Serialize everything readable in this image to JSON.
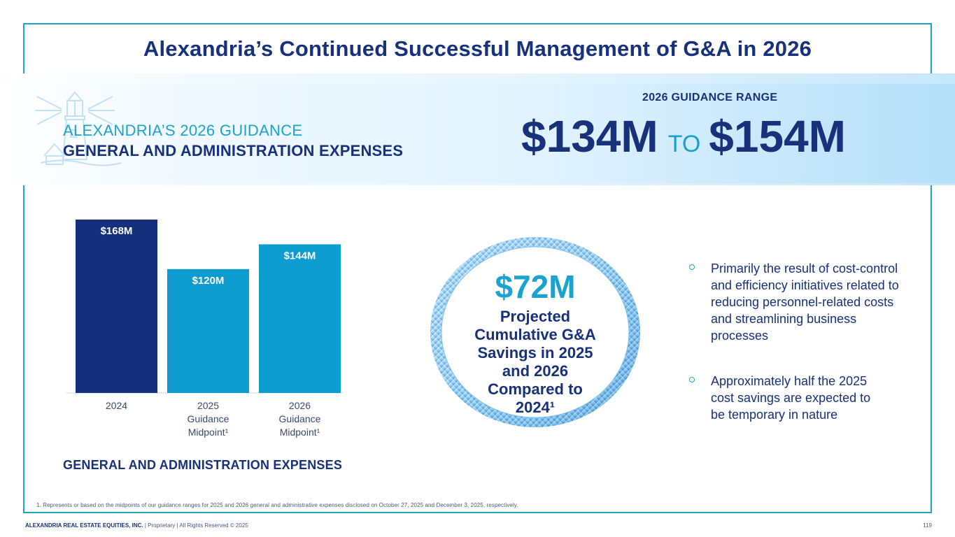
{
  "title": "Alexandria’s Continued Successful Management of G&A in 2026",
  "guidance": {
    "line1": "ALEXANDRIA’S 2026 GUIDANCE",
    "line2": "GENERAL AND ADMINISTRATION EXPENSES",
    "range_label": "2026 GUIDANCE RANGE",
    "low": "$134M",
    "to": "TO",
    "high": "$154M"
  },
  "chart_data": {
    "type": "bar",
    "title": "GENERAL AND ADMINISTRATION EXPENSES",
    "categories": [
      "2024",
      "2025 Guidance Midpoint¹",
      "2026 Guidance Midpoint¹"
    ],
    "category_lines": [
      [
        "2024"
      ],
      [
        "2025",
        "Guidance",
        "Midpoint¹"
      ],
      [
        "2026",
        "Guidance",
        "Midpoint¹"
      ]
    ],
    "values": [
      168,
      120,
      144
    ],
    "data_labels": [
      "$168M",
      "$120M",
      "$144M"
    ],
    "colors": [
      "#142f7c",
      "#0d9bd0",
      "#0d9bd0"
    ],
    "ylim": [
      0,
      168
    ],
    "xlabel": "",
    "ylabel": ""
  },
  "savings": {
    "amount": "$72M",
    "lines": [
      "Projected",
      "Cumulative G&A",
      "Savings in 2025",
      "and 2026",
      "Compared to",
      "2024¹"
    ]
  },
  "bullets": {
    "b1": "Primarily the result of cost-control and efficiency initiatives related to reducing personnel-related costs and streamlining business processes",
    "b2": "Approximately half the 2025 cost savings are expected to be temporary in nature"
  },
  "footnote": "1.   Represents or based on the midpoints of our guidance ranges for 2025 and 2026 general and administrative expenses disclosed on October 27, 2025 and December 3, 2025, respectively.",
  "footer": {
    "company": "ALEXANDRIA REAL ESTATE EQUITIES, INC.",
    "rest": " | Proprietary | All Rights Reserved © 2025",
    "page": "119"
  },
  "colors": {
    "navy": "#17317a",
    "accent": "#1aa3cf",
    "frame": "#1fa3c9"
  }
}
